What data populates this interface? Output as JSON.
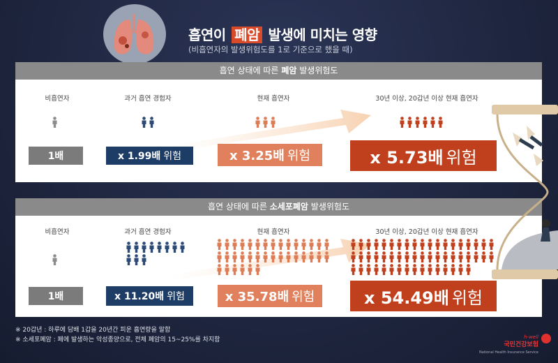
{
  "header": {
    "title_before": "흡연이",
    "title_highlight": "폐암",
    "title_after": "발생에 미치는 영향",
    "subtitle": "(비흡연자의 발생위험도를 1로 기준으로 했을 때)"
  },
  "colors": {
    "gray_badge": "#7b7b7b",
    "navy_badge": "#1e3d66",
    "salmon_badge": "#e0805c",
    "red_badge": "#c0401e",
    "figure_gray": "#8c8c8c",
    "figure_navy": "#2b4a75",
    "figure_salmon": "#dd7d57",
    "figure_red": "#c0401e"
  },
  "panels": [
    {
      "header_before": "흡연 상태에 따른",
      "header_bold": "폐암",
      "header_after": "발생위험도",
      "columns": [
        {
          "label": "비흡연자",
          "badge_num": "1배",
          "badge_word": "",
          "figures": 1
        },
        {
          "label": "과거 흡연 경험자",
          "badge_num": "x 1.99배",
          "badge_word": "위험",
          "figures": 2
        },
        {
          "label": "현재 흡연자",
          "badge_num": "x 3.25배",
          "badge_word": "위험",
          "figures": 3
        },
        {
          "label": "30년 이상, 20갑년 이상 현재 흡연자",
          "badge_num": "x 5.73배",
          "badge_word": "위험",
          "figures": 6
        }
      ]
    },
    {
      "header_before": "흡연 상태에 따른",
      "header_bold": "소세포폐암",
      "header_after": "발생위험도",
      "columns": [
        {
          "label": "비흡연자",
          "badge_num": "1배",
          "badge_word": "",
          "figures": 1
        },
        {
          "label": "과거 흡연 경험자",
          "badge_num": "x 11.20배",
          "badge_word": "위험",
          "figures": 11
        },
        {
          "label": "현재 흡연자",
          "badge_num": "x 35.78배",
          "badge_word": "위험",
          "figures": 36
        },
        {
          "label": "30년 이상, 20갑년 이상 현재 흡연자",
          "badge_num": "x 54.49배",
          "badge_word": "위험",
          "figures": 54
        }
      ]
    }
  ],
  "notes": [
    "※ 20갑년 : 하루에 담배 1갑을 20년간 피운 흡연량을 말함",
    "※ 소세포폐암 : 폐에 발생하는 악성종양으로, 전체 폐암의 15~25%를 차지함"
  ],
  "brand": {
    "tag": "h-well",
    "name": "국민건강보험",
    "sub": "National Health Insurance Service"
  }
}
